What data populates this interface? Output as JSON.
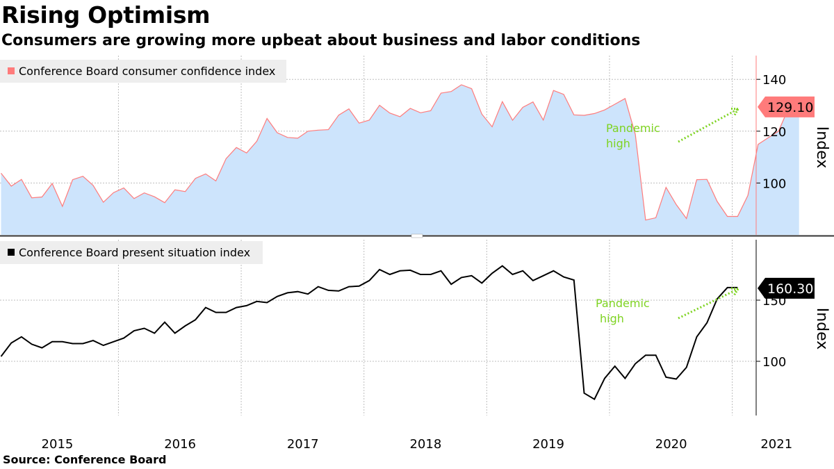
{
  "header": {
    "title": "Rising Optimism",
    "subtitle": "Consumers are growing more upbeat about business and labor conditions"
  },
  "footer": {
    "source": "Source: Conference Board"
  },
  "colors": {
    "confidence_line": "#ff7b7b",
    "confidence_fill": "#cde4fc",
    "confidence_label_bg": "#ff7b7b",
    "present_line": "#000000",
    "annotation": "#7ed321",
    "grid": "#bdbdbd",
    "legend_bg": "#eeeeee"
  },
  "chart_data": [
    {
      "type": "area",
      "legend": "Conference Board consumer confidence index",
      "ylabel": "Index",
      "ylim": [
        80,
        150
      ],
      "yticks": [
        "100",
        "120",
        "140"
      ],
      "ytick_values": [
        100,
        120,
        140
      ],
      "last_value_label": "129.10",
      "last_value": 129.1,
      "annotation": {
        "text_line1": "Pandemic",
        "text_line2": "high"
      },
      "x_start": "2015-01",
      "values": [
        103.8,
        98.8,
        101.4,
        94.3,
        94.6,
        99.8,
        91.0,
        101.3,
        102.6,
        99.1,
        92.6,
        96.3,
        98.1,
        94.0,
        96.2,
        94.7,
        92.4,
        97.4,
        96.7,
        101.8,
        103.5,
        100.8,
        109.4,
        113.7,
        111.6,
        116.1,
        124.9,
        119.4,
        117.6,
        117.3,
        120.0,
        120.4,
        120.6,
        126.2,
        128.6,
        123.1,
        124.3,
        130.0,
        127.0,
        125.6,
        128.8,
        127.1,
        127.9,
        134.7,
        135.3,
        137.9,
        136.4,
        126.6,
        121.7,
        131.4,
        124.2,
        129.2,
        131.3,
        124.3,
        135.7,
        134.2,
        126.3,
        126.1,
        126.8,
        128.2,
        130.4,
        132.6,
        118.8,
        85.7,
        86.6,
        98.3,
        91.7,
        86.3,
        101.3,
        101.4,
        92.9,
        87.1,
        87.1,
        95.2,
        114.9,
        117.5,
        120.0,
        129.1,
        129.1
      ]
    },
    {
      "type": "line",
      "legend": "Conference Board present situation index",
      "ylabel": "Index",
      "ylim": [
        60,
        200
      ],
      "yticks": [
        "100",
        "150"
      ],
      "ytick_values": [
        100,
        150
      ],
      "last_value_label": "160.30",
      "last_value": 160.3,
      "annotation": {
        "text_line1": "Pandemic",
        "text_line2": "high"
      },
      "x_start": "2015-01",
      "values": [
        104.0,
        115.0,
        120.0,
        114.0,
        111.0,
        116.0,
        116.0,
        114.5,
        114.5,
        117.0,
        113.0,
        116.0,
        119.0,
        125.0,
        127.0,
        123.0,
        132.0,
        123.0,
        129.0,
        134.0,
        144.0,
        140.0,
        140.0,
        144.0,
        145.5,
        149.0,
        148.0,
        153.0,
        156.0,
        157.0,
        155.0,
        161.0,
        158.0,
        157.5,
        161.0,
        161.5,
        166.0,
        175.0,
        171.0,
        174.0,
        174.5,
        171.0,
        171.0,
        174.0,
        163.0,
        168.5,
        170.0,
        164.0,
        172.0,
        178.0,
        171.0,
        174.0,
        166.0,
        170.0,
        174.0,
        169.0,
        166.5,
        74.0,
        69.0,
        86.0,
        96.0,
        86.0,
        98.0,
        105.0,
        105.0,
        87.0,
        85.5,
        95.0,
        120.0,
        131.5,
        151.0,
        160.3,
        160.3
      ]
    }
  ],
  "x_axis": {
    "year_labels": [
      "2015",
      "2016",
      "2017",
      "2018",
      "2019",
      "2020",
      "2021"
    ],
    "year_months": [
      5.5,
      17.5,
      29.5,
      41.5,
      53.5,
      65.5,
      75.8
    ]
  }
}
